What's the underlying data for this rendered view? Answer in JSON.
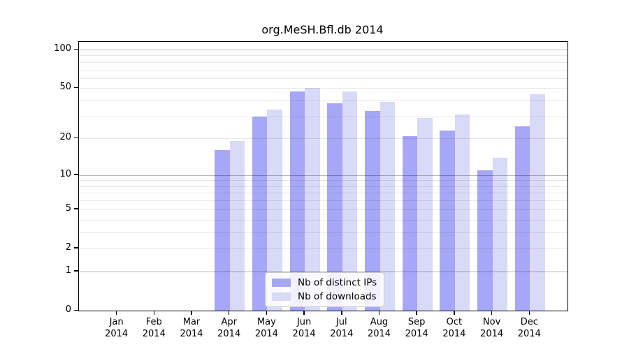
{
  "title": "org.MeSH.Bfl.db 2014",
  "chart_data": {
    "type": "bar",
    "title": "org.MeSH.Bfl.db 2014",
    "categories": [
      "Jan",
      "Feb",
      "Mar",
      "Apr",
      "May",
      "Jun",
      "Jul",
      "Aug",
      "Sep",
      "Oct",
      "Nov",
      "Dec"
    ],
    "year_label": "2014",
    "series": [
      {
        "name": "Nb of distinct IPs",
        "color": "#a7a7f7",
        "values": [
          0,
          0,
          0,
          16,
          30,
          47,
          38,
          33,
          21,
          23,
          11,
          25
        ]
      },
      {
        "name": "Nb of downloads",
        "color": "#d9d9f8",
        "values": [
          0,
          0,
          0,
          19,
          34,
          50,
          47,
          39,
          29,
          31,
          14,
          45
        ]
      }
    ],
    "yscale": "log1p",
    "ylim": [
      0,
      110
    ],
    "yticks": [
      0,
      1,
      2,
      5,
      10,
      20,
      50,
      100
    ],
    "major_gridlines": [
      1,
      10,
      100
    ],
    "minor_gridlines": [
      2,
      3,
      4,
      5,
      6,
      7,
      8,
      9,
      20,
      30,
      40,
      50,
      60,
      70,
      80,
      90
    ],
    "grid": true,
    "legend_position": "lower-center-inside",
    "colors": {
      "background": "#ffffff",
      "axis": "#000000",
      "grid_major": "#bfbfbf",
      "grid_minor": "#e8e8e8",
      "legend_border": "#cccccc"
    }
  }
}
